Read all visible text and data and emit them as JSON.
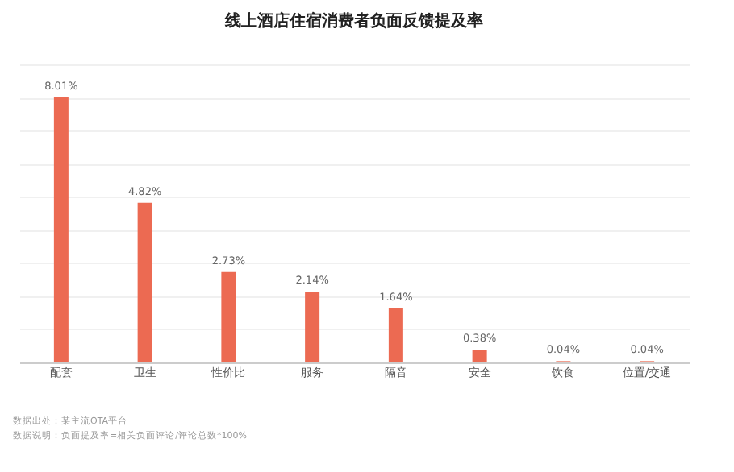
{
  "chart_data": {
    "type": "bar",
    "title": "线上酒店住宿消费者负面反馈提及率",
    "categories": [
      "配套",
      "卫生",
      "性价比",
      "服务",
      "隔音",
      "安全",
      "饮食",
      "位置/交通"
    ],
    "values": [
      8.01,
      4.82,
      2.73,
      2.14,
      1.64,
      0.38,
      0.04,
      0.04
    ],
    "value_labels": [
      "8.01%",
      "4.82%",
      "2.73%",
      "2.14%",
      "1.64%",
      "0.38%",
      "0.04%",
      "0.04%"
    ],
    "color": "#ec6a52",
    "ylim": [
      0,
      9
    ],
    "yticks": [
      {
        "value": 0,
        "label": null
      },
      {
        "value": 1,
        "label": null
      },
      {
        "value": 2,
        "label": null
      },
      {
        "value": 3,
        "label": null
      },
      {
        "value": 4,
        "label": null
      },
      {
        "value": 5,
        "label": null
      },
      {
        "value": 6,
        "label": null
      },
      {
        "value": 7,
        "label": null
      },
      {
        "value": 8,
        "label": null
      },
      {
        "value": 9,
        "label": null
      }
    ],
    "tick_labels": "x",
    "grid": "y",
    "annotations": [
      "数据出处：某主流OTA平台",
      "数据说明：负面提及率=相关负面评论/评论总数*100%"
    ]
  }
}
